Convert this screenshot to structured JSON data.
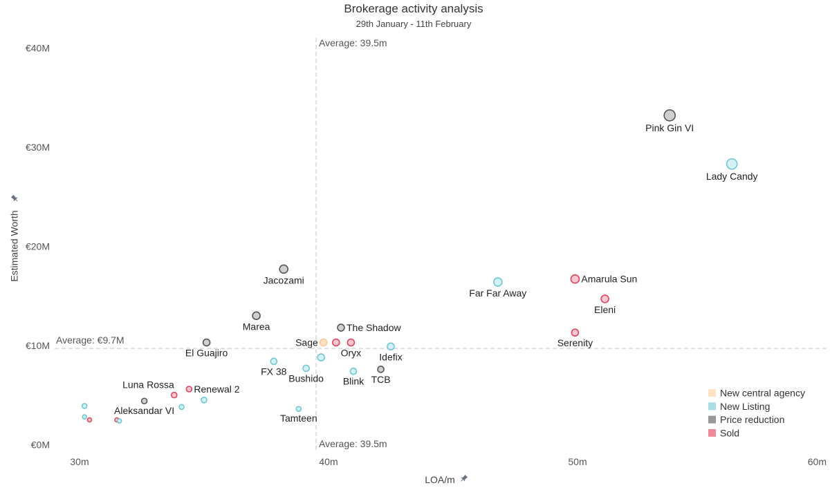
{
  "chart_data": {
    "type": "scatter",
    "title": "Brokerage activity analysis",
    "subtitle": "29th January - 11th February",
    "xlabel": "LOA/m",
    "ylabel": "Estimated Worth",
    "xlim": [
      29,
      60
    ],
    "ylim": [
      -0.6,
      41
    ],
    "x_ticks": [
      {
        "value": 30,
        "label": "30m"
      },
      {
        "value": 40,
        "label": "40m"
      },
      {
        "value": 50,
        "label": "50m"
      },
      {
        "value": 60,
        "label": "60m"
      }
    ],
    "y_ticks": [
      {
        "value": 0,
        "label": "€0M"
      },
      {
        "value": 10,
        "label": "€10M"
      },
      {
        "value": 20,
        "label": "€20M"
      },
      {
        "value": 30,
        "label": "€30M"
      },
      {
        "value": 40,
        "label": "€40M"
      }
    ],
    "averages": {
      "x": 39.5,
      "x_label": "Average: 39.5m",
      "y": 9.7,
      "y_label": "Average: €9.7M"
    },
    "categories": {
      "new_central_agency": {
        "name": "New central agency",
        "fill": "#fde2c4",
        "stroke": "#f9c99a"
      },
      "new_listing": {
        "name": "New Listing",
        "fill": "#d6f1f4",
        "stroke": "#6ec6d3"
      },
      "price_reduction": {
        "name": "Price reduction",
        "fill": "#cfcfcf",
        "stroke": "#555555"
      },
      "sold": {
        "name": "Sold",
        "fill": "#f8c7cf",
        "stroke": "#e0455f"
      }
    },
    "legend": {
      "position": "bottom-right",
      "items": [
        {
          "name": "New central agency",
          "color": "#fde2c4"
        },
        {
          "name": "New Listing",
          "color": "#a8dde3"
        },
        {
          "name": "Price reduction",
          "color": "#999999"
        },
        {
          "name": "Sold",
          "color": "#ee8a99"
        }
      ]
    },
    "points": [
      {
        "label": "Pink Gin VI",
        "x": 53.7,
        "y": 33.2,
        "category": "price_reduction",
        "size": 8,
        "label_pos": "below"
      },
      {
        "label": "Lady Candy",
        "x": 56.2,
        "y": 28.3,
        "category": "new_listing",
        "size": 7.5,
        "label_pos": "below"
      },
      {
        "label": "Amarula Sun",
        "x": 49.9,
        "y": 16.7,
        "category": "sold",
        "size": 6,
        "label_pos": "right"
      },
      {
        "label": "Far Far Away",
        "x": 46.8,
        "y": 16.4,
        "category": "new_listing",
        "size": 6,
        "label_pos": "below"
      },
      {
        "label": "Eleni",
        "x": 51.1,
        "y": 14.7,
        "category": "sold",
        "size": 5.5,
        "label_pos": "below"
      },
      {
        "label": "Serenity",
        "x": 49.9,
        "y": 11.3,
        "category": "sold",
        "size": 5,
        "label_pos": "below"
      },
      {
        "label": "Jacozami",
        "x": 38.2,
        "y": 17.7,
        "category": "price_reduction",
        "size": 6,
        "label_pos": "below"
      },
      {
        "label": "Marea",
        "x": 37.1,
        "y": 13.0,
        "category": "price_reduction",
        "size": 5.5,
        "label_pos": "below"
      },
      {
        "label": "The Shadow",
        "x": 40.5,
        "y": 11.8,
        "category": "price_reduction",
        "size": 5,
        "label_pos": "right"
      },
      {
        "label": "El Guajiro",
        "x": 35.1,
        "y": 10.3,
        "category": "price_reduction",
        "size": 5,
        "label_pos": "below"
      },
      {
        "label": "Sage",
        "x": 39.8,
        "y": 10.3,
        "category": "new_central_agency",
        "size": 5,
        "label_pos": "left"
      },
      {
        "label": "",
        "x": 40.3,
        "y": 10.3,
        "category": "sold",
        "size": 5,
        "label_pos": "none"
      },
      {
        "label": "Oryx",
        "x": 40.9,
        "y": 10.3,
        "category": "sold",
        "size": 5,
        "label_pos": "below"
      },
      {
        "label": "Idefix",
        "x": 42.5,
        "y": 9.9,
        "category": "new_listing",
        "size": 5,
        "label_pos": "below"
      },
      {
        "label": "",
        "x": 39.7,
        "y": 8.8,
        "category": "new_listing",
        "size": 5,
        "label_pos": "none"
      },
      {
        "label": "FX 38",
        "x": 37.8,
        "y": 8.4,
        "category": "new_listing",
        "size": 4.5,
        "label_pos": "below"
      },
      {
        "label": "Bushido",
        "x": 39.1,
        "y": 7.7,
        "category": "new_listing",
        "size": 4.5,
        "label_pos": "below"
      },
      {
        "label": "Blink",
        "x": 41.0,
        "y": 7.4,
        "category": "new_listing",
        "size": 4.5,
        "label_pos": "below"
      },
      {
        "label": "TCB",
        "x": 42.1,
        "y": 7.6,
        "category": "price_reduction",
        "size": 4.5,
        "label_pos": "below"
      },
      {
        "label": "Renewal 2",
        "x": 34.4,
        "y": 5.6,
        "category": "sold",
        "size": 4,
        "label_pos": "right"
      },
      {
        "label": "Luna Rossa",
        "x": 33.8,
        "y": 5.0,
        "category": "sold",
        "size": 4,
        "label_pos": "above-left"
      },
      {
        "label": "",
        "x": 35.0,
        "y": 4.5,
        "category": "new_listing",
        "size": 4,
        "label_pos": "none"
      },
      {
        "label": "Aleksandar VI",
        "x": 32.6,
        "y": 4.4,
        "category": "price_reduction",
        "size": 4,
        "label_pos": "below"
      },
      {
        "label": "",
        "x": 34.1,
        "y": 3.8,
        "category": "new_listing",
        "size": 3.5,
        "label_pos": "none"
      },
      {
        "label": "Tamteen",
        "x": 38.8,
        "y": 3.6,
        "category": "new_listing",
        "size": 3.5,
        "label_pos": "below"
      },
      {
        "label": "",
        "x": 30.2,
        "y": 3.9,
        "category": "new_listing",
        "size": 3.5,
        "label_pos": "none"
      },
      {
        "label": "",
        "x": 30.2,
        "y": 2.8,
        "category": "new_listing",
        "size": 3,
        "label_pos": "none"
      },
      {
        "label": "",
        "x": 30.4,
        "y": 2.5,
        "category": "sold",
        "size": 3,
        "label_pos": "none"
      },
      {
        "label": "",
        "x": 31.5,
        "y": 2.5,
        "category": "sold",
        "size": 3,
        "label_pos": "none"
      },
      {
        "label": "",
        "x": 31.6,
        "y": 2.4,
        "category": "new_listing",
        "size": 3,
        "label_pos": "none"
      }
    ]
  }
}
